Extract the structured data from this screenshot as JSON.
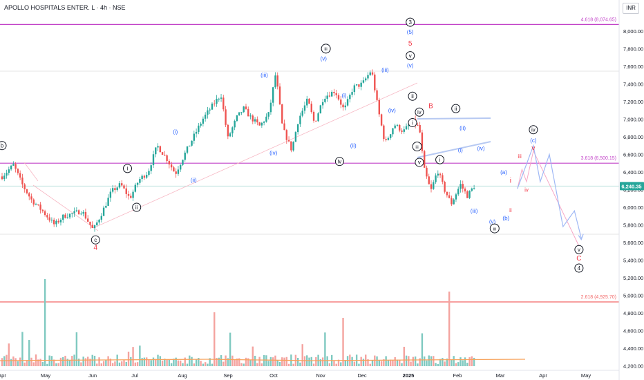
{
  "header": {
    "symbol_title": "APOLLO HOSPITALS ENTER. L · 4h · NSE",
    "currency": "INR"
  },
  "chart_data": {
    "type": "candlestick",
    "title": "APOLLO HOSPITALS ENTER. L · 4h · NSE",
    "x_tick_labels": [
      "Apr",
      "May",
      "Jun",
      "Jul",
      "Aug",
      "Sep",
      "Oct",
      "Nov",
      "Dec",
      "2025",
      "Feb",
      "Mar",
      "Apr",
      "May"
    ],
    "y_tick_labels": [
      "8,000.00",
      "7,800.00",
      "7,600.00",
      "7,400.00",
      "7,200.00",
      "7,000.00",
      "6,800.00",
      "6,600.00",
      "6,400.00",
      "6,200.00",
      "6,000.00",
      "5,800.00",
      "5,600.00",
      "5,400.00",
      "5,200.00",
      "5,000.00",
      "4,800.00",
      "4,600.00",
      "4,400.00",
      "4,200.00"
    ],
    "ylim": [
      4150,
      8250
    ],
    "last_price": 6240.35,
    "last_price_label": "6,240.35",
    "price_path": [
      {
        "x": 0.0,
        "y": 6350
      },
      {
        "x": 0.5,
        "y": 6480
      },
      {
        "x": 0.9,
        "y": 6250
      },
      {
        "x": 1.3,
        "y": 6080
      },
      {
        "x": 1.8,
        "y": 5950
      },
      {
        "x": 2.3,
        "y": 5800
      },
      {
        "x": 2.7,
        "y": 5900
      },
      {
        "x": 3.0,
        "y": 5920
      },
      {
        "x": 3.5,
        "y": 5960
      },
      {
        "x": 4.0,
        "y": 5740
      },
      {
        "x": 4.4,
        "y": 5950
      },
      {
        "x": 4.8,
        "y": 6180
      },
      {
        "x": 5.2,
        "y": 6260
      },
      {
        "x": 5.6,
        "y": 6100
      },
      {
        "x": 6.0,
        "y": 6310
      },
      {
        "x": 6.4,
        "y": 6400
      },
      {
        "x": 6.8,
        "y": 6700
      },
      {
        "x": 7.2,
        "y": 6560
      },
      {
        "x": 7.6,
        "y": 6380
      },
      {
        "x": 8.0,
        "y": 6600
      },
      {
        "x": 8.4,
        "y": 6800
      },
      {
        "x": 8.8,
        "y": 7000
      },
      {
        "x": 9.3,
        "y": 7180
      },
      {
        "x": 9.6,
        "y": 7280
      },
      {
        "x": 9.9,
        "y": 6780
      },
      {
        "x": 10.3,
        "y": 7020
      },
      {
        "x": 10.6,
        "y": 7120
      },
      {
        "x": 10.9,
        "y": 7020
      },
      {
        "x": 11.3,
        "y": 6920
      },
      {
        "x": 11.7,
        "y": 7060
      },
      {
        "x": 12.0,
        "y": 7520
      },
      {
        "x": 12.3,
        "y": 6900
      },
      {
        "x": 12.7,
        "y": 6650
      },
      {
        "x": 13.0,
        "y": 7000
      },
      {
        "x": 13.4,
        "y": 7220
      },
      {
        "x": 13.7,
        "y": 6950
      },
      {
        "x": 14.1,
        "y": 7250
      },
      {
        "x": 14.6,
        "y": 7320
      },
      {
        "x": 15.0,
        "y": 7100
      },
      {
        "x": 15.4,
        "y": 7360
      },
      {
        "x": 15.8,
        "y": 7400
      },
      {
        "x": 16.2,
        "y": 7560
      },
      {
        "x": 16.5,
        "y": 7100
      },
      {
        "x": 16.8,
        "y": 6720
      },
      {
        "x": 17.2,
        "y": 6940
      },
      {
        "x": 17.6,
        "y": 6860
      },
      {
        "x": 18.0,
        "y": 6980
      },
      {
        "x": 18.3,
        "y": 6900
      },
      {
        "x": 18.5,
        "y": 6440
      },
      {
        "x": 18.8,
        "y": 6180
      },
      {
        "x": 19.1,
        "y": 6420
      },
      {
        "x": 19.4,
        "y": 6200
      },
      {
        "x": 19.7,
        "y": 6040
      },
      {
        "x": 20.1,
        "y": 6260
      },
      {
        "x": 20.4,
        "y": 6130
      },
      {
        "x": 20.7,
        "y": 6240
      }
    ],
    "volume_bars": 210,
    "volume_colors": {
      "up": "#7fc9c0",
      "down": "#f4a39f"
    },
    "candle_colors": {
      "up": "#26a69a",
      "down": "#ef5350"
    },
    "horizontal_levels": [
      {
        "label": "4.618 (8,074.65)",
        "value": 8074.65,
        "color": "#c243c8"
      },
      {
        "label": "3.618 (6,500.15)",
        "value": 6500.15,
        "color": "#c243c8"
      },
      {
        "label": "2.618 (4,925.70)",
        "value": 4925.7,
        "color": "#f26868"
      }
    ],
    "wave_labels": [
      {
        "text": "b",
        "style": "circle",
        "color": "#131722",
        "x": 0.0,
        "y": 6700
      },
      {
        "text": "c",
        "style": "circle",
        "color": "#131722",
        "x": 4.1,
        "y": 5630
      },
      {
        "text": "4",
        "style": "plain",
        "color": "#f23645",
        "x": 4.1,
        "y": 5540
      },
      {
        "text": "i",
        "style": "circle",
        "color": "#131722",
        "x": 5.5,
        "y": 6440
      },
      {
        "text": "ii",
        "style": "circle",
        "color": "#131722",
        "x": 5.9,
        "y": 6000
      },
      {
        "text": "(i)",
        "style": "plain",
        "color": "#2962ff",
        "x": 7.6,
        "y": 6860
      },
      {
        "text": "(ii)",
        "style": "plain",
        "color": "#2962ff",
        "x": 8.4,
        "y": 6310
      },
      {
        "text": "(iii)",
        "style": "plain",
        "color": "#2962ff",
        "x": 11.5,
        "y": 7500
      },
      {
        "text": "(iv)",
        "style": "plain",
        "color": "#2962ff",
        "x": 11.9,
        "y": 6620
      },
      {
        "text": "iii",
        "style": "circle",
        "color": "#131722",
        "x": 14.2,
        "y": 7800
      },
      {
        "text": "(v)",
        "style": "plain",
        "color": "#2962ff",
        "x": 14.1,
        "y": 7690
      },
      {
        "text": "(i)",
        "style": "plain",
        "color": "#2962ff",
        "x": 15.0,
        "y": 7270
      },
      {
        "text": "(ii)",
        "style": "plain",
        "color": "#2962ff",
        "x": 15.4,
        "y": 6700
      },
      {
        "text": "iv",
        "style": "circle",
        "color": "#131722",
        "x": 14.8,
        "y": 6520
      },
      {
        "text": "(iii)",
        "style": "plain",
        "color": "#2962ff",
        "x": 16.8,
        "y": 7560
      },
      {
        "text": "(iv)",
        "style": "plain",
        "color": "#2962ff",
        "x": 17.1,
        "y": 7100
      },
      {
        "text": "3",
        "style": "circle",
        "color": "#131722",
        "x": 17.9,
        "y": 8100
      },
      {
        "text": "(5)",
        "style": "plain",
        "color": "#2962ff",
        "x": 17.9,
        "y": 7990
      },
      {
        "text": "5",
        "style": "plain",
        "color": "#f23645",
        "x": 17.9,
        "y": 7860
      },
      {
        "text": "v",
        "style": "circle",
        "color": "#131722",
        "x": 17.9,
        "y": 7720
      },
      {
        "text": "(v)",
        "style": "plain",
        "color": "#2962ff",
        "x": 17.9,
        "y": 7610
      },
      {
        "text": "ii",
        "style": "circle",
        "color": "#131722",
        "x": 18.0,
        "y": 7260
      },
      {
        "text": "i",
        "style": "circle",
        "color": "#131722",
        "x": 18.0,
        "y": 6960
      },
      {
        "text": "iii",
        "style": "circle",
        "color": "#131722",
        "x": 18.2,
        "y": 6690
      },
      {
        "text": "iv",
        "style": "circle",
        "color": "#131722",
        "x": 18.3,
        "y": 7080
      },
      {
        "text": "v",
        "style": "circle",
        "color": "#131722",
        "x": 18.3,
        "y": 6510
      },
      {
        "text": "B",
        "style": "plain",
        "color": "#f23645",
        "x": 18.8,
        "y": 7150
      },
      {
        "text": "i",
        "style": "circle",
        "color": "#131722",
        "x": 19.2,
        "y": 6540
      },
      {
        "text": "ii",
        "style": "circle",
        "color": "#131722",
        "x": 19.9,
        "y": 7120
      },
      {
        "text": "(i)",
        "style": "plain",
        "color": "#2962ff",
        "x": 20.1,
        "y": 6650
      },
      {
        "text": "(ii)",
        "style": "plain",
        "color": "#2962ff",
        "x": 20.2,
        "y": 6900
      },
      {
        "text": "(iv)",
        "style": "plain",
        "color": "#2962ff",
        "x": 21.0,
        "y": 6670
      },
      {
        "text": "(iii)",
        "style": "plain",
        "color": "#2962ff",
        "x": 20.7,
        "y": 5960
      },
      {
        "text": "(v)",
        "style": "plain",
        "color": "#2962ff",
        "x": 21.5,
        "y": 5840
      },
      {
        "text": "iii",
        "style": "circle",
        "color": "#131722",
        "x": 21.6,
        "y": 5760
      },
      {
        "text": "(a)",
        "style": "plain",
        "color": "#2962ff",
        "x": 22.0,
        "y": 6400
      },
      {
        "text": "(b)",
        "style": "plain",
        "color": "#2962ff",
        "x": 22.1,
        "y": 5880
      },
      {
        "text": "i",
        "style": "plain",
        "color": "#f23645",
        "x": 22.3,
        "y": 6300
      },
      {
        "text": "ii",
        "style": "plain",
        "color": "#f23645",
        "x": 22.3,
        "y": 5970
      },
      {
        "text": "iii",
        "style": "plain",
        "color": "#f23645",
        "x": 22.7,
        "y": 6580
      },
      {
        "text": "iv",
        "style": "plain",
        "color": "#f23645",
        "x": 23.0,
        "y": 6200
      },
      {
        "text": "iv",
        "style": "circle",
        "color": "#131722",
        "x": 23.3,
        "y": 6880
      },
      {
        "text": "(c)",
        "style": "plain",
        "color": "#2962ff",
        "x": 23.3,
        "y": 6760
      },
      {
        "text": "v",
        "style": "plain",
        "color": "#f23645",
        "x": 23.3,
        "y": 6670
      },
      {
        "text": "v",
        "style": "circle",
        "color": "#131722",
        "x": 25.3,
        "y": 5520
      },
      {
        "text": "C",
        "style": "plain",
        "color": "#f23645",
        "x": 25.3,
        "y": 5420
      },
      {
        "text": "4",
        "style": "circle",
        "color": "#131722",
        "x": 25.3,
        "y": 5310
      }
    ],
    "projection_blue": [
      {
        "x": 22.6,
        "y": 6210
      },
      {
        "x": 23.3,
        "y": 6700
      },
      {
        "x": 23.6,
        "y": 6290
      },
      {
        "x": 24.0,
        "y": 6600
      },
      {
        "x": 24.6,
        "y": 5780
      },
      {
        "x": 25.1,
        "y": 5960
      },
      {
        "x": 25.4,
        "y": 5650
      }
    ],
    "projection_pink": [
      {
        "x": 22.6,
        "y": 6210
      },
      {
        "x": 22.8,
        "y": 6430
      },
      {
        "x": 23.0,
        "y": 6290
      },
      {
        "x": 23.3,
        "y": 6640
      },
      {
        "x": 25.3,
        "y": 5560
      }
    ],
    "grid": false
  }
}
